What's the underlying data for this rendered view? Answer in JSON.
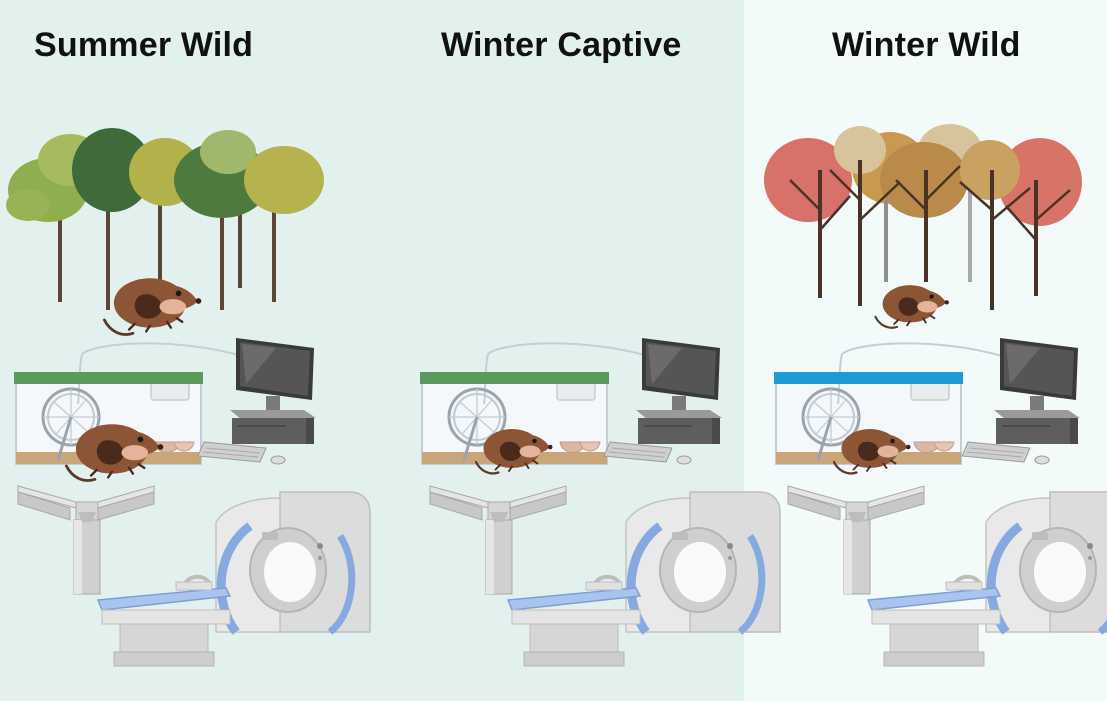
{
  "colors": {
    "background_left": "#e2f1ee",
    "background_right": "#f2fbf9",
    "summer_foliage": [
      "#8fae4e",
      "#3f6a3a",
      "#b2b14a",
      "#4e7b3d",
      "#b6b24d",
      "#9fb86c"
    ],
    "winter_foliage": [
      "#d9716b",
      "#b98a4a",
      "#c89a4f",
      "#d8c49c",
      "#d77367"
    ],
    "cage_lid_green": "#5a9a5c",
    "cage_lid_blue": "#1e9ad6",
    "shrew_fur": "#8c5536",
    "machine_gray": "#d9d9d9",
    "mri_ring": "#86a9df"
  },
  "panels": [
    {
      "id": "summer-wild",
      "title": "Summer Wild",
      "scene": "summer-forest",
      "cage_lid_color": "green"
    },
    {
      "id": "winter-captive",
      "title": "Winter Captive",
      "scene": "none",
      "cage_lid_color": "green"
    },
    {
      "id": "winter-wild",
      "title": "Winter Wild",
      "scene": "winter-forest",
      "cage_lid_color": "blue"
    }
  ],
  "icons": [
    "tree-icon",
    "shrew-icon",
    "cage-icon",
    "running-wheel-icon",
    "computer-icon",
    "y-maze-icon",
    "mri-scanner-icon"
  ]
}
